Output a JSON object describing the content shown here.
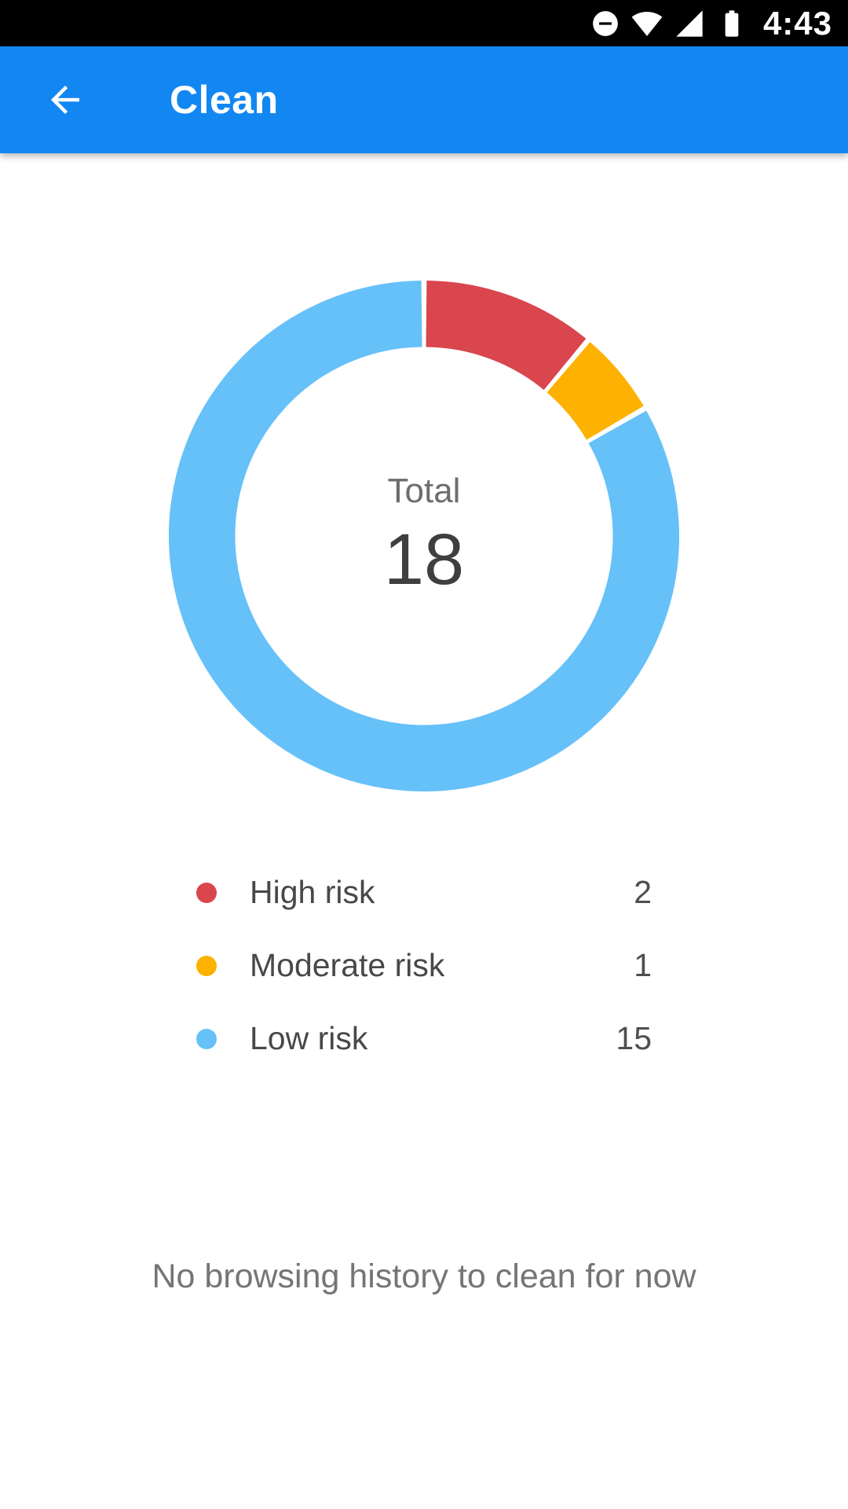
{
  "status_bar": {
    "time": "4:43",
    "icons": [
      "do-not-disturb-icon",
      "wifi-icon",
      "cellular-signal-icon",
      "battery-icon"
    ]
  },
  "app_bar": {
    "title": "Clean",
    "color": "#1287f2"
  },
  "chart_data": {
    "type": "pie",
    "donut": true,
    "center_label": "Total",
    "total": 18,
    "start_angle_deg": 0,
    "direction": "clockwise",
    "legend_position": "bottom",
    "series": [
      {
        "name": "High risk",
        "value": 2,
        "color": "#d9464e"
      },
      {
        "name": "Moderate risk",
        "value": 1,
        "color": "#fdb100"
      },
      {
        "name": "Low risk",
        "value": 15,
        "color": "#66c1f8"
      }
    ]
  },
  "empty_state": {
    "message": "No browsing history to clean for now"
  }
}
